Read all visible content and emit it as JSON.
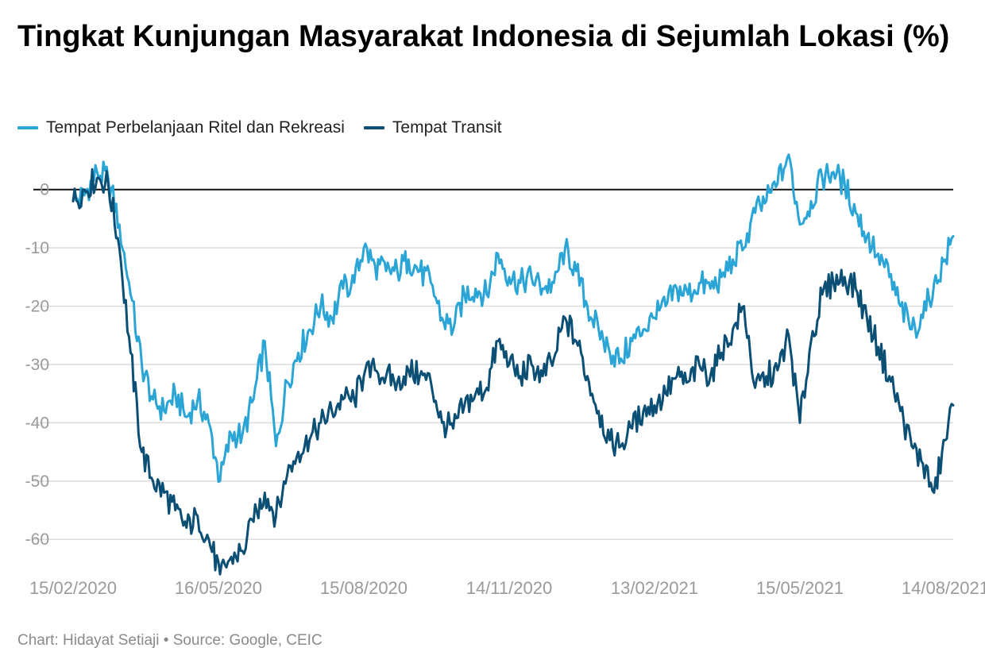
{
  "footer": {
    "chart_by": "Chart: Hidayat Setiaji",
    "separator": " • ",
    "source": "Source: Google, CEIC"
  },
  "chart_data": {
    "type": "line",
    "title": "Tingkat Kunjungan Masyarakat Indonesia di Sejumlah Lokasi (%)",
    "xlabel": "",
    "ylabel": "",
    "x_range": [
      "2020-02-15",
      "2021-08-19"
    ],
    "ylim": [
      -71,
      8
    ],
    "yticks": [
      0,
      -10,
      -20,
      -30,
      -40,
      -50,
      -60
    ],
    "ytick_labels": [
      "0",
      "-10",
      "-20",
      "-30",
      "-40",
      "-50",
      "-60"
    ],
    "xtick_dates": [
      "2020-02-15",
      "2020-05-16",
      "2020-08-15",
      "2020-11-14",
      "2021-02-13",
      "2021-05-15",
      "2021-08-14"
    ],
    "xtick_labels": [
      "15/02/2020",
      "16/05/2020",
      "15/08/2020",
      "14/11/2020",
      "13/02/2021",
      "15/05/2021",
      "14/08/2021"
    ],
    "grid": "horizontal",
    "legend_position": "top-left",
    "series": [
      {
        "name": "Tempat Perbelanjaan Ritel dan Rekreasi",
        "color": "#2aa5d6",
        "points": [
          [
            "2020-02-15",
            -2
          ],
          [
            "2020-02-22",
            -1
          ],
          [
            "2020-03-01",
            3
          ],
          [
            "2020-03-08",
            2
          ],
          [
            "2020-03-15",
            -6
          ],
          [
            "2020-03-22",
            -18
          ],
          [
            "2020-03-29",
            -30
          ],
          [
            "2020-04-05",
            -36
          ],
          [
            "2020-04-12",
            -38
          ],
          [
            "2020-04-19",
            -35
          ],
          [
            "2020-04-26",
            -39
          ],
          [
            "2020-05-03",
            -36
          ],
          [
            "2020-05-10",
            -40
          ],
          [
            "2020-05-17",
            -50
          ],
          [
            "2020-05-24",
            -42
          ],
          [
            "2020-05-31",
            -42
          ],
          [
            "2020-06-07",
            -36
          ],
          [
            "2020-06-14",
            -26
          ],
          [
            "2020-06-21",
            -44
          ],
          [
            "2020-06-28",
            -33
          ],
          [
            "2020-07-05",
            -28
          ],
          [
            "2020-07-12",
            -24
          ],
          [
            "2020-07-19",
            -20
          ],
          [
            "2020-07-26",
            -22
          ],
          [
            "2020-08-02",
            -17
          ],
          [
            "2020-08-09",
            -16
          ],
          [
            "2020-08-15",
            -10
          ],
          [
            "2020-08-22",
            -13
          ],
          [
            "2020-08-29",
            -14
          ],
          [
            "2020-09-05",
            -14
          ],
          [
            "2020-09-12",
            -12
          ],
          [
            "2020-09-19",
            -14
          ],
          [
            "2020-09-26",
            -16
          ],
          [
            "2020-10-03",
            -22
          ],
          [
            "2020-10-10",
            -24
          ],
          [
            "2020-10-17",
            -18
          ],
          [
            "2020-10-24",
            -17
          ],
          [
            "2020-10-31",
            -18
          ],
          [
            "2020-11-07",
            -11
          ],
          [
            "2020-11-14",
            -15
          ],
          [
            "2020-11-21",
            -16
          ],
          [
            "2020-11-28",
            -15
          ],
          [
            "2020-12-05",
            -17
          ],
          [
            "2020-12-12",
            -16
          ],
          [
            "2020-12-19",
            -10
          ],
          [
            "2020-12-26",
            -14
          ],
          [
            "2021-01-02",
            -20
          ],
          [
            "2021-01-09",
            -24
          ],
          [
            "2021-01-16",
            -28
          ],
          [
            "2021-01-23",
            -29
          ],
          [
            "2021-01-30",
            -26
          ],
          [
            "2021-02-06",
            -24
          ],
          [
            "2021-02-13",
            -22
          ],
          [
            "2021-02-20",
            -20
          ],
          [
            "2021-02-27",
            -17
          ],
          [
            "2021-03-06",
            -18
          ],
          [
            "2021-03-13",
            -16
          ],
          [
            "2021-03-20",
            -17
          ],
          [
            "2021-03-27",
            -15
          ],
          [
            "2021-04-03",
            -12
          ],
          [
            "2021-04-10",
            -10
          ],
          [
            "2021-04-17",
            -4
          ],
          [
            "2021-04-24",
            -2
          ],
          [
            "2021-05-01",
            1
          ],
          [
            "2021-05-08",
            6
          ],
          [
            "2021-05-15",
            -6
          ],
          [
            "2021-05-22",
            -2
          ],
          [
            "2021-05-29",
            2
          ],
          [
            "2021-06-05",
            3
          ],
          [
            "2021-06-12",
            1
          ],
          [
            "2021-06-19",
            -4
          ],
          [
            "2021-06-26",
            -8
          ],
          [
            "2021-07-03",
            -11
          ],
          [
            "2021-07-10",
            -15
          ],
          [
            "2021-07-17",
            -20
          ],
          [
            "2021-07-24",
            -24
          ],
          [
            "2021-07-31",
            -22
          ],
          [
            "2021-08-07",
            -16
          ],
          [
            "2021-08-14",
            -12
          ],
          [
            "2021-08-19",
            -8
          ]
        ]
      },
      {
        "name": "Tempat Transit",
        "color": "#0b4f75",
        "points": [
          [
            "2020-02-15",
            -2
          ],
          [
            "2020-02-22",
            0
          ],
          [
            "2020-03-01",
            2
          ],
          [
            "2020-03-08",
            1
          ],
          [
            "2020-03-15",
            -10
          ],
          [
            "2020-03-22",
            -28
          ],
          [
            "2020-03-29",
            -45
          ],
          [
            "2020-04-05",
            -50
          ],
          [
            "2020-04-12",
            -52
          ],
          [
            "2020-04-19",
            -55
          ],
          [
            "2020-04-26",
            -58
          ],
          [
            "2020-05-03",
            -56
          ],
          [
            "2020-05-10",
            -60
          ],
          [
            "2020-05-17",
            -66
          ],
          [
            "2020-05-24",
            -63
          ],
          [
            "2020-05-31",
            -62
          ],
          [
            "2020-06-07",
            -57
          ],
          [
            "2020-06-14",
            -52
          ],
          [
            "2020-06-21",
            -56
          ],
          [
            "2020-06-28",
            -49
          ],
          [
            "2020-07-05",
            -45
          ],
          [
            "2020-07-12",
            -43
          ],
          [
            "2020-07-19",
            -40
          ],
          [
            "2020-07-26",
            -38
          ],
          [
            "2020-08-02",
            -36
          ],
          [
            "2020-08-09",
            -36
          ],
          [
            "2020-08-15",
            -32
          ],
          [
            "2020-08-22",
            -31
          ],
          [
            "2020-08-29",
            -32
          ],
          [
            "2020-09-05",
            -33
          ],
          [
            "2020-09-12",
            -31
          ],
          [
            "2020-09-19",
            -32
          ],
          [
            "2020-09-26",
            -33
          ],
          [
            "2020-10-03",
            -40
          ],
          [
            "2020-10-10",
            -41
          ],
          [
            "2020-10-17",
            -37
          ],
          [
            "2020-10-24",
            -35
          ],
          [
            "2020-10-31",
            -34
          ],
          [
            "2020-11-07",
            -26
          ],
          [
            "2020-11-14",
            -30
          ],
          [
            "2020-11-21",
            -32
          ],
          [
            "2020-11-28",
            -30
          ],
          [
            "2020-12-05",
            -32
          ],
          [
            "2020-12-12",
            -29
          ],
          [
            "2020-12-19",
            -22
          ],
          [
            "2020-12-26",
            -26
          ],
          [
            "2021-01-02",
            -32
          ],
          [
            "2021-01-09",
            -38
          ],
          [
            "2021-01-16",
            -43
          ],
          [
            "2021-01-23",
            -44
          ],
          [
            "2021-01-30",
            -41
          ],
          [
            "2021-02-06",
            -38
          ],
          [
            "2021-02-13",
            -37
          ],
          [
            "2021-02-20",
            -35
          ],
          [
            "2021-02-27",
            -32
          ],
          [
            "2021-03-06",
            -33
          ],
          [
            "2021-03-13",
            -30
          ],
          [
            "2021-03-20",
            -32
          ],
          [
            "2021-03-27",
            -28
          ],
          [
            "2021-04-03",
            -24
          ],
          [
            "2021-04-10",
            -20
          ],
          [
            "2021-04-17",
            -34
          ],
          [
            "2021-04-24",
            -32
          ],
          [
            "2021-05-01",
            -31
          ],
          [
            "2021-05-08",
            -25
          ],
          [
            "2021-05-15",
            -40
          ],
          [
            "2021-05-22",
            -26
          ],
          [
            "2021-05-29",
            -18
          ],
          [
            "2021-06-05",
            -16
          ],
          [
            "2021-06-12",
            -15
          ],
          [
            "2021-06-19",
            -17
          ],
          [
            "2021-06-26",
            -22
          ],
          [
            "2021-07-03",
            -27
          ],
          [
            "2021-07-10",
            -32
          ],
          [
            "2021-07-17",
            -38
          ],
          [
            "2021-07-24",
            -44
          ],
          [
            "2021-07-31",
            -47
          ],
          [
            "2021-08-07",
            -52
          ],
          [
            "2021-08-14",
            -43
          ],
          [
            "2021-08-19",
            -37
          ]
        ]
      }
    ]
  }
}
